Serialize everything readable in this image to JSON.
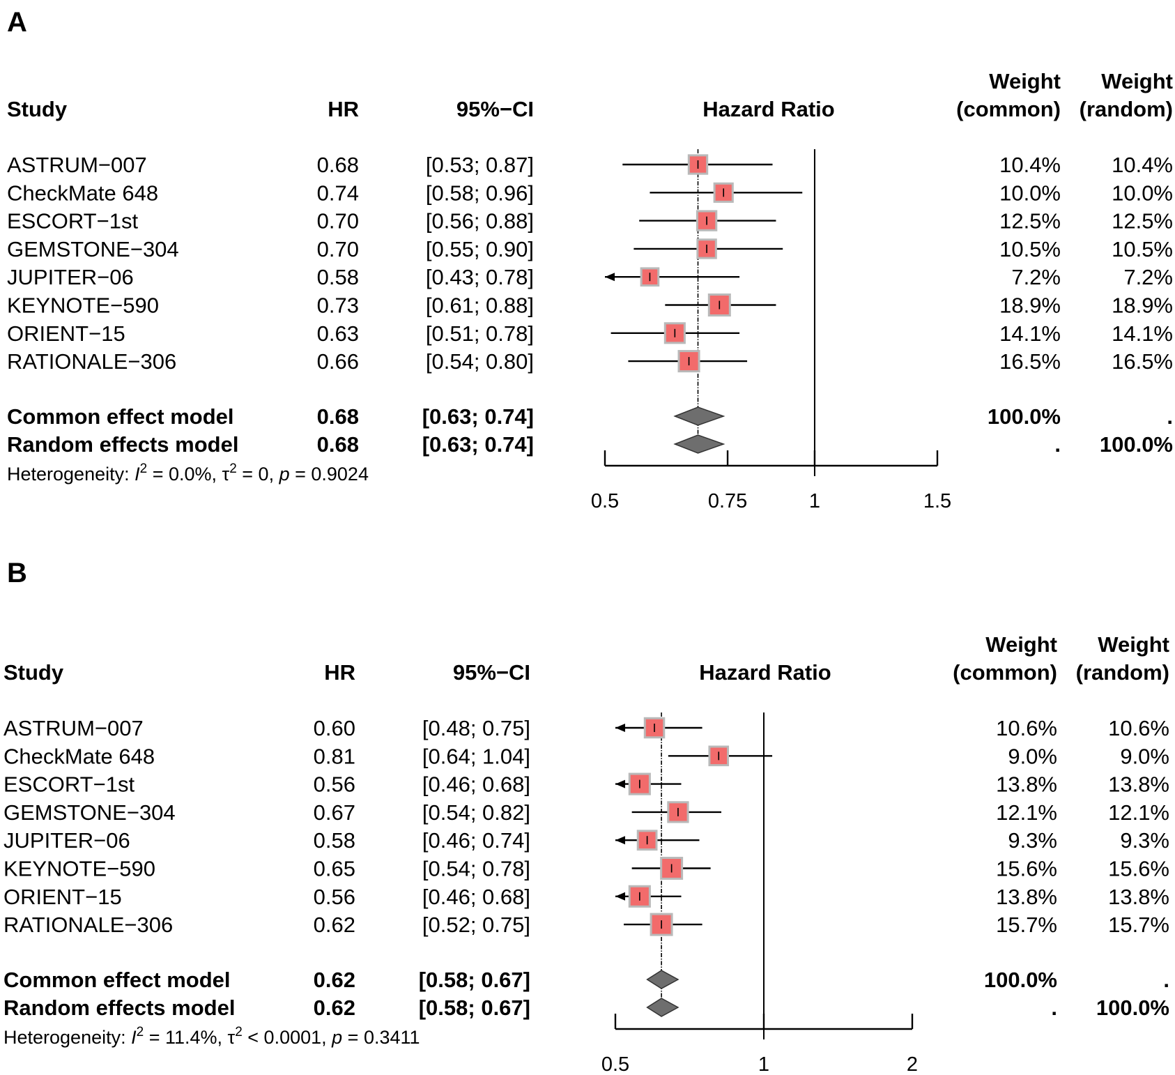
{
  "panels": [
    {
      "label": "A",
      "headers": {
        "study": "Study",
        "hr": "HR",
        "ci": "95%−CI",
        "plot": "Hazard Ratio",
        "weight_common_line1": "Weight",
        "weight_common_line2": "(common)",
        "weight_random_line1": "Weight",
        "weight_random_line2": "(random)"
      },
      "studies": [
        {
          "name": "ASTRUM−007",
          "hr": "0.68",
          "ci": "[0.53; 0.87]",
          "w_common": "10.4%",
          "w_random": "10.4%"
        },
        {
          "name": "CheckMate 648",
          "hr": "0.74",
          "ci": "[0.58; 0.96]",
          "w_common": "10.0%",
          "w_random": "10.0%"
        },
        {
          "name": "ESCORT−1st",
          "hr": "0.70",
          "ci": "[0.56; 0.88]",
          "w_common": "12.5%",
          "w_random": "12.5%"
        },
        {
          "name": "GEMSTONE−304",
          "hr": "0.70",
          "ci": "[0.55; 0.90]",
          "w_common": "10.5%",
          "w_random": "10.5%"
        },
        {
          "name": "JUPITER−06",
          "hr": "0.58",
          "ci": "[0.43; 0.78]",
          "w_common": "7.2%",
          "w_random": "7.2%"
        },
        {
          "name": "KEYNOTE−590",
          "hr": "0.73",
          "ci": "[0.61; 0.88]",
          "w_common": "18.9%",
          "w_random": "18.9%"
        },
        {
          "name": "ORIENT−15",
          "hr": "0.63",
          "ci": "[0.51; 0.78]",
          "w_common": "14.1%",
          "w_random": "14.1%"
        },
        {
          "name": "RATIONALE−306",
          "hr": "0.66",
          "ci": "[0.54; 0.80]",
          "w_common": "16.5%",
          "w_random": "16.5%"
        }
      ],
      "models": [
        {
          "name": "Common effect model",
          "hr": "0.68",
          "ci": "[0.63; 0.74]",
          "w_common": "100.0%",
          "w_random": "."
        },
        {
          "name": "Random effects model",
          "hr": "0.68",
          "ci": "[0.63; 0.74]",
          "w_common": ".",
          "w_random": "100.0%"
        }
      ],
      "heterogeneity": {
        "prefix": "Heterogeneity: ",
        "i2_symbol": "I",
        "i2_value": " = 0.0%, ",
        "tau2_symbol": "τ",
        "tau2_value": " = 0, ",
        "p_symbol": "p",
        "p_value": " = 0.9024",
        "sup": "2"
      },
      "axis_ticks": [
        "0.5",
        "0.75",
        "1",
        "1.5"
      ]
    },
    {
      "label": "B",
      "headers": {
        "study": "Study",
        "hr": "HR",
        "ci": "95%−CI",
        "plot": "Hazard Ratio",
        "weight_common_line1": "Weight",
        "weight_common_line2": "(common)",
        "weight_random_line1": "Weight",
        "weight_random_line2": "(random)"
      },
      "studies": [
        {
          "name": "ASTRUM−007",
          "hr": "0.60",
          "ci": "[0.48; 0.75]",
          "w_common": "10.6%",
          "w_random": "10.6%"
        },
        {
          "name": "CheckMate 648",
          "hr": "0.81",
          "ci": "[0.64; 1.04]",
          "w_common": "9.0%",
          "w_random": "9.0%"
        },
        {
          "name": "ESCORT−1st",
          "hr": "0.56",
          "ci": "[0.46; 0.68]",
          "w_common": "13.8%",
          "w_random": "13.8%"
        },
        {
          "name": "GEMSTONE−304",
          "hr": "0.67",
          "ci": "[0.54; 0.82]",
          "w_common": "12.1%",
          "w_random": "12.1%"
        },
        {
          "name": "JUPITER−06",
          "hr": "0.58",
          "ci": "[0.46; 0.74]",
          "w_common": "9.3%",
          "w_random": "9.3%"
        },
        {
          "name": "KEYNOTE−590",
          "hr": "0.65",
          "ci": "[0.54; 0.78]",
          "w_common": "15.6%",
          "w_random": "15.6%"
        },
        {
          "name": "ORIENT−15",
          "hr": "0.56",
          "ci": "[0.46; 0.68]",
          "w_common": "13.8%",
          "w_random": "13.8%"
        },
        {
          "name": "RATIONALE−306",
          "hr": "0.62",
          "ci": "[0.52; 0.75]",
          "w_common": "15.7%",
          "w_random": "15.7%"
        }
      ],
      "models": [
        {
          "name": "Common effect model",
          "hr": "0.62",
          "ci": "[0.58; 0.67]",
          "w_common": "100.0%",
          "w_random": "."
        },
        {
          "name": "Random effects model",
          "hr": "0.62",
          "ci": "[0.58; 0.67]",
          "w_common": ".",
          "w_random": "100.0%"
        }
      ],
      "heterogeneity": {
        "prefix": "Heterogeneity: ",
        "i2_symbol": "I",
        "i2_value": " = 11.4%, ",
        "tau2_symbol": "τ",
        "tau2_value": " < 0.0001, ",
        "p_symbol": "p",
        "p_value": " = 0.3411",
        "sup": "2"
      },
      "axis_ticks": [
        "0.5",
        "1",
        "2"
      ]
    }
  ],
  "chart_data": [
    {
      "type": "forest",
      "panel": "A",
      "title": "Hazard Ratio",
      "scale": "log",
      "xlim": [
        0.5,
        1.5
      ],
      "ticks": [
        0.5,
        0.75,
        1,
        1.5
      ],
      "reference_line": 1,
      "colors": {
        "box": "#f26b6b",
        "box_border": "#b9b9b9",
        "diamond": "#6e6e6e",
        "line": "#000000"
      },
      "studies": [
        {
          "name": "ASTRUM-007",
          "hr": 0.68,
          "lower": 0.53,
          "upper": 0.87,
          "weight": 10.4
        },
        {
          "name": "CheckMate 648",
          "hr": 0.74,
          "lower": 0.58,
          "upper": 0.96,
          "weight": 10.0
        },
        {
          "name": "ESCORT-1st",
          "hr": 0.7,
          "lower": 0.56,
          "upper": 0.88,
          "weight": 12.5
        },
        {
          "name": "GEMSTONE-304",
          "hr": 0.7,
          "lower": 0.55,
          "upper": 0.9,
          "weight": 10.5
        },
        {
          "name": "JUPITER-06",
          "hr": 0.58,
          "lower": 0.43,
          "upper": 0.78,
          "weight": 7.2
        },
        {
          "name": "KEYNOTE-590",
          "hr": 0.73,
          "lower": 0.61,
          "upper": 0.88,
          "weight": 18.9
        },
        {
          "name": "ORIENT-15",
          "hr": 0.63,
          "lower": 0.51,
          "upper": 0.78,
          "weight": 14.1
        },
        {
          "name": "RATIONALE-306",
          "hr": 0.66,
          "lower": 0.54,
          "upper": 0.8,
          "weight": 16.5
        }
      ],
      "pooled": [
        {
          "name": "Common effect model",
          "hr": 0.68,
          "lower": 0.63,
          "upper": 0.74
        },
        {
          "name": "Random effects model",
          "hr": 0.68,
          "lower": 0.63,
          "upper": 0.74
        }
      ]
    },
    {
      "type": "forest",
      "panel": "B",
      "title": "Hazard Ratio",
      "scale": "log",
      "xlim": [
        0.5,
        2
      ],
      "ticks": [
        0.5,
        1,
        2
      ],
      "reference_line": 1,
      "colors": {
        "box": "#f26b6b",
        "box_border": "#b9b9b9",
        "diamond": "#6e6e6e",
        "line": "#000000"
      },
      "studies": [
        {
          "name": "ASTRUM-007",
          "hr": 0.6,
          "lower": 0.48,
          "upper": 0.75,
          "weight": 10.6
        },
        {
          "name": "CheckMate 648",
          "hr": 0.81,
          "lower": 0.64,
          "upper": 1.04,
          "weight": 9.0
        },
        {
          "name": "ESCORT-1st",
          "hr": 0.56,
          "lower": 0.46,
          "upper": 0.68,
          "weight": 13.8
        },
        {
          "name": "GEMSTONE-304",
          "hr": 0.67,
          "lower": 0.54,
          "upper": 0.82,
          "weight": 12.1
        },
        {
          "name": "JUPITER-06",
          "hr": 0.58,
          "lower": 0.46,
          "upper": 0.74,
          "weight": 9.3
        },
        {
          "name": "KEYNOTE-590",
          "hr": 0.65,
          "lower": 0.54,
          "upper": 0.78,
          "weight": 15.6
        },
        {
          "name": "ORIENT-15",
          "hr": 0.56,
          "lower": 0.46,
          "upper": 0.68,
          "weight": 13.8
        },
        {
          "name": "RATIONALE-306",
          "hr": 0.62,
          "lower": 0.52,
          "upper": 0.75,
          "weight": 15.7
        }
      ],
      "pooled": [
        {
          "name": "Common effect model",
          "hr": 0.62,
          "lower": 0.58,
          "upper": 0.67
        },
        {
          "name": "Random effects model",
          "hr": 0.62,
          "lower": 0.58,
          "upper": 0.67
        }
      ]
    }
  ]
}
